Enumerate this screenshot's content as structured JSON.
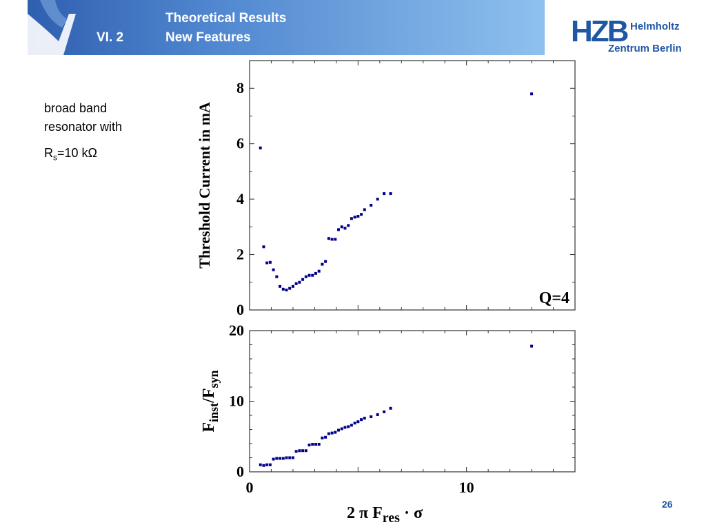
{
  "header": {
    "section": "VI.  2",
    "title_line1": "Theoretical Results",
    "title_line2": "New Features"
  },
  "logo": {
    "mark": "HZB",
    "line1": "Helmholtz",
    "line2": "Zentrum Berlin"
  },
  "description": {
    "line1": "broad band",
    "line2": "resonator with",
    "rs_label": "R",
    "rs_sub": "s",
    "rs_value": "=10 kΩ"
  },
  "page_number": "26",
  "colors": {
    "accent": "#1f57a4",
    "marker": "#00008b"
  },
  "chart_data": [
    {
      "type": "scatter",
      "ylabel": "Threshold Current in mA",
      "annotation": "Q=4",
      "xlim": [
        0,
        15
      ],
      "ylim": [
        0,
        9
      ],
      "yticks": [
        0,
        2,
        4,
        6,
        8
      ],
      "x": [
        0.5,
        0.65,
        0.8,
        0.95,
        1.1,
        1.25,
        1.4,
        1.55,
        1.7,
        1.85,
        2.0,
        2.15,
        2.3,
        2.45,
        2.6,
        2.75,
        2.9,
        3.05,
        3.2,
        3.35,
        3.5,
        3.65,
        3.8,
        3.95,
        4.1,
        4.25,
        4.4,
        4.55,
        4.7,
        4.85,
        5.0,
        5.15,
        5.3,
        5.6,
        5.9,
        6.2,
        6.5,
        13.0
      ],
      "y": [
        5.85,
        2.28,
        1.7,
        1.72,
        1.45,
        1.2,
        0.85,
        0.75,
        0.72,
        0.78,
        0.85,
        0.95,
        1.0,
        1.1,
        1.2,
        1.25,
        1.25,
        1.32,
        1.4,
        1.65,
        1.75,
        2.58,
        2.55,
        2.55,
        2.9,
        3.0,
        2.95,
        3.05,
        3.3,
        3.35,
        3.38,
        3.45,
        3.62,
        3.78,
        4.0,
        4.2,
        4.2,
        7.8
      ],
      "grid": false
    },
    {
      "type": "scatter",
      "ylabel_main": "F",
      "ylabel_sub1": "inst",
      "ylabel_mid": "/F",
      "ylabel_sub2": "syn",
      "xlabel_pre": "2 π  F",
      "xlabel_sub": "res",
      "xlabel_post": " · σ",
      "xlim": [
        0,
        15
      ],
      "ylim": [
        0,
        20
      ],
      "xticks": [
        0,
        10
      ],
      "yticks": [
        0,
        10,
        20
      ],
      "x": [
        0.5,
        0.65,
        0.8,
        0.95,
        1.1,
        1.25,
        1.4,
        1.55,
        1.7,
        1.85,
        2.0,
        2.15,
        2.3,
        2.45,
        2.6,
        2.75,
        2.9,
        3.05,
        3.2,
        3.35,
        3.5,
        3.65,
        3.8,
        3.95,
        4.1,
        4.25,
        4.4,
        4.55,
        4.7,
        4.85,
        5.0,
        5.15,
        5.3,
        5.6,
        5.9,
        6.2,
        6.5,
        13.0
      ],
      "y": [
        1.0,
        0.9,
        1.0,
        1.0,
        1.8,
        1.9,
        1.9,
        1.9,
        2.0,
        2.0,
        2.0,
        2.9,
        3.0,
        3.0,
        3.0,
        3.8,
        3.9,
        3.9,
        3.9,
        4.8,
        4.9,
        5.4,
        5.5,
        5.6,
        5.9,
        6.1,
        6.3,
        6.4,
        6.6,
        6.9,
        7.1,
        7.4,
        7.6,
        7.8,
        8.1,
        8.5,
        9.0,
        17.8
      ],
      "grid": false
    }
  ]
}
